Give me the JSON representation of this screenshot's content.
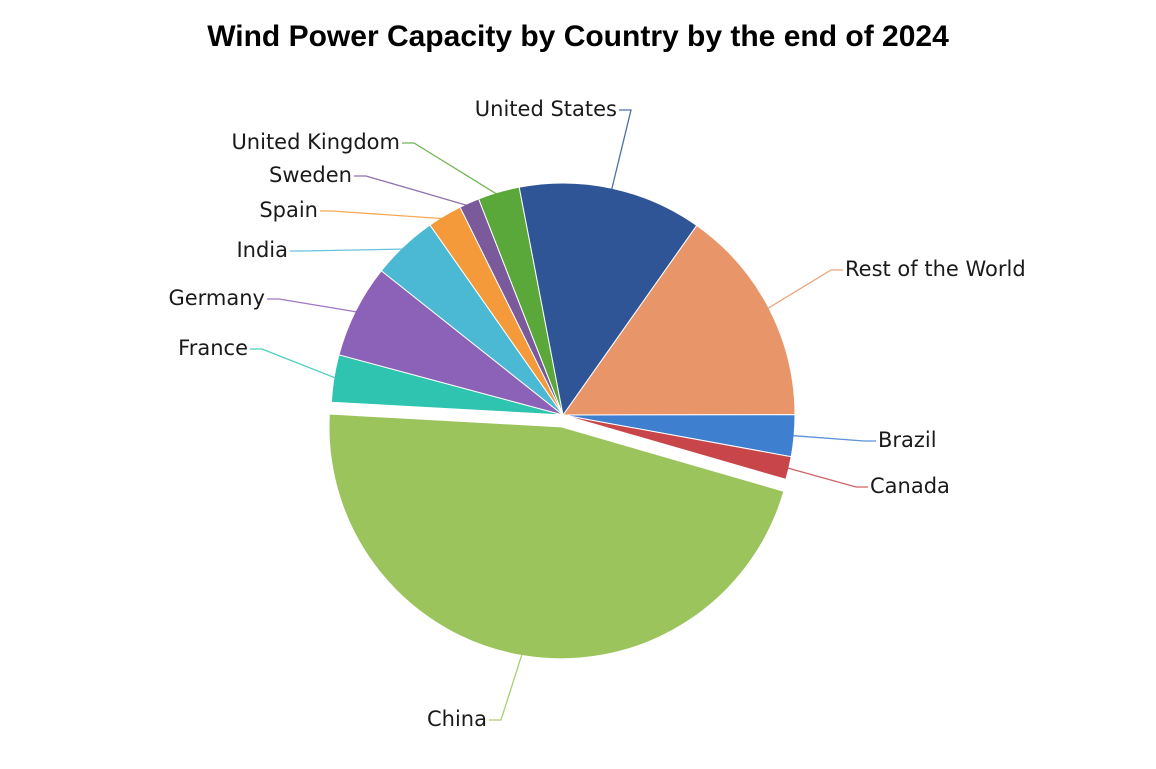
{
  "chart_data": {
    "type": "pie",
    "title": "Wind Power Capacity by Country by the end of 2024",
    "categories": [
      "Rest of the World",
      "Brazil",
      "Canada",
      "China",
      "France",
      "Germany",
      "India",
      "Spain",
      "Sweden",
      "United Kingdom",
      "United States"
    ],
    "values": [
      15.2,
      2.9,
      1.6,
      46.4,
      3.3,
      6.5,
      4.6,
      2.4,
      1.4,
      2.9,
      12.8
    ],
    "colors": [
      "#e8956a",
      "#3f7fd0",
      "#c8454a",
      "#9bc45c",
      "#2ec4b0",
      "#8c62b8",
      "#4bb8d4",
      "#f59a3a",
      "#7a5a9a",
      "#5aa83a",
      "#2f5597"
    ],
    "exploded": "China"
  }
}
